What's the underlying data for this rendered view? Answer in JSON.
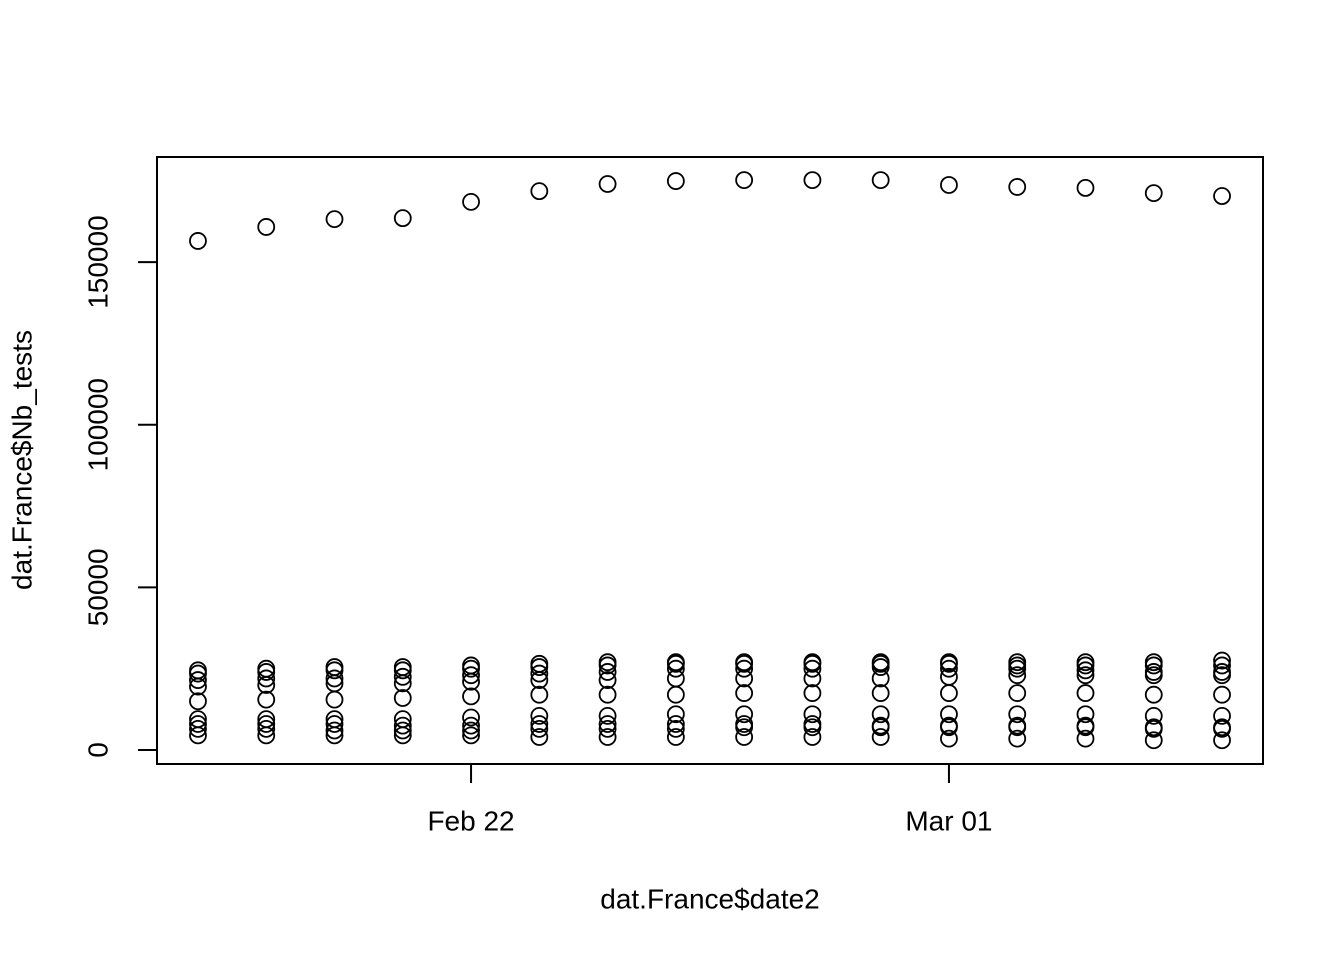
{
  "chart_data": {
    "type": "scatter",
    "x_label": "dat.France$date2",
    "y_label": "dat.France$Nb_tests",
    "x": [
      "Feb 18",
      "Feb 19",
      "Feb 20",
      "Feb 21",
      "Feb 22",
      "Feb 23",
      "Feb 24",
      "Feb 25",
      "Feb 26",
      "Feb 27",
      "Feb 28",
      "Mar 01",
      "Mar 02",
      "Mar 03",
      "Mar 04",
      "Mar 05"
    ],
    "values": [
      [
        156500,
        24500,
        23500,
        21500,
        19500,
        15000,
        9500,
        8000,
        6500,
        4500
      ],
      [
        160800,
        25000,
        24000,
        22000,
        20000,
        15500,
        9500,
        8000,
        6500,
        4500
      ],
      [
        163200,
        25500,
        24500,
        22000,
        20500,
        15500,
        9500,
        8000,
        6000,
        4500
      ],
      [
        163500,
        25500,
        24500,
        22500,
        20500,
        16000,
        9500,
        7500,
        6000,
        4500
      ],
      [
        168500,
        26000,
        25000,
        23000,
        21000,
        16500,
        10000,
        7500,
        6000,
        4500
      ],
      [
        171800,
        26500,
        25500,
        23500,
        21500,
        17000,
        10500,
        8000,
        6500,
        4000
      ],
      [
        174000,
        27000,
        26000,
        24000,
        21500,
        17000,
        10500,
        8000,
        6500,
        4000
      ],
      [
        174900,
        27000,
        26500,
        25000,
        22000,
        17000,
        11000,
        8000,
        6500,
        4000
      ],
      [
        175200,
        27000,
        26500,
        25000,
        22000,
        17500,
        11000,
        8000,
        7000,
        4000
      ],
      [
        175200,
        27000,
        26500,
        25000,
        22000,
        17500,
        11000,
        8000,
        7000,
        4000
      ],
      [
        175200,
        27000,
        26500,
        25500,
        22000,
        17500,
        11000,
        7500,
        7000,
        4000
      ],
      [
        173700,
        27000,
        26500,
        25000,
        22500,
        17500,
        11000,
        7500,
        7000,
        3500
      ],
      [
        173100,
        27000,
        26000,
        25000,
        23000,
        17500,
        11000,
        7500,
        7000,
        3500
      ],
      [
        172800,
        27000,
        26000,
        24500,
        23000,
        17500,
        11000,
        7500,
        7000,
        3500
      ],
      [
        171200,
        27000,
        26000,
        24000,
        23000,
        17000,
        10500,
        7000,
        6500,
        3000
      ],
      [
        170300,
        27500,
        26000,
        24000,
        23000,
        17000,
        10500,
        7000,
        6500,
        3000
      ]
    ],
    "color": "#000000",
    "xticks": [
      "Feb 22",
      "Mar 01"
    ],
    "ylim": [
      -4300,
      182300
    ],
    "yticks": [
      0,
      50000,
      100000,
      150000
    ]
  }
}
